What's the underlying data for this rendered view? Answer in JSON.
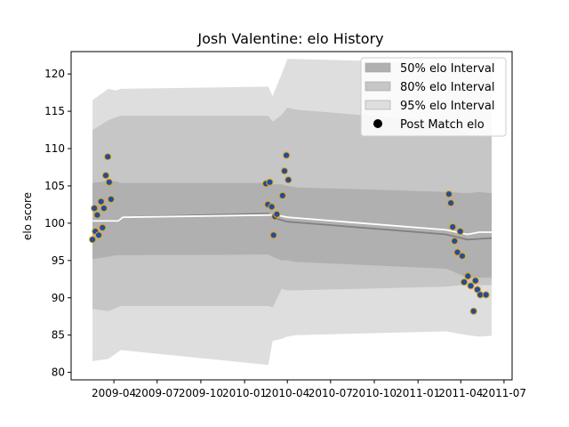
{
  "chart_data": {
    "type": "line",
    "title": "Josh Valentine: elo History",
    "xlabel": "",
    "ylabel": "elo score",
    "xlim": [
      "2009-01-01",
      "2011-07-18"
    ],
    "ylim": [
      79,
      123
    ],
    "x_ticks": [
      "2009-04",
      "2009-07",
      "2009-10",
      "2010-01",
      "2010-04",
      "2010-07",
      "2010-10",
      "2011-01",
      "2011-04",
      "2011-07"
    ],
    "y_ticks": [
      80,
      85,
      90,
      95,
      100,
      105,
      110,
      115,
      120
    ],
    "grid": false,
    "legend_position": "top-right",
    "legend": [
      {
        "label": "50% elo Interval",
        "kind": "band",
        "color": "#b0b0b0"
      },
      {
        "label": "80% elo Interval",
        "kind": "band",
        "color": "#c6c6c6"
      },
      {
        "label": "95% elo Interval",
        "kind": "band",
        "color": "#dedede"
      },
      {
        "label": "Post Match elo",
        "kind": "marker",
        "color": "#000000"
      }
    ],
    "colors": {
      "band_50": "#b0b0b0",
      "band_80": "#c6c6c6",
      "band_95": "#dedede",
      "mean_line": "#808080",
      "median_line": "#ffffff",
      "point_fill": "#1f4e9c",
      "point_edge": "#e8a317"
    },
    "bands": {
      "x": [
        "2009-02-15",
        "2009-03-20",
        "2009-04-05",
        "2009-04-15",
        "2010-02-20",
        "2010-03-01",
        "2010-03-20",
        "2010-04-01",
        "2010-04-20",
        "2011-03-01",
        "2011-04-15",
        "2011-05-10",
        "2011-06-05"
      ],
      "p95_low": [
        81.5,
        81.8,
        82.5,
        83.0,
        81.0,
        84.2,
        84.5,
        84.8,
        85.0,
        85.5,
        85.0,
        84.8,
        84.9
      ],
      "p95_high": [
        116.5,
        118.0,
        117.8,
        118.0,
        118.3,
        117.0,
        120.0,
        122.0,
        122.0,
        121.5,
        120.5,
        120.2,
        120.2
      ],
      "p80_low": [
        88.5,
        88.2,
        88.6,
        88.9,
        88.9,
        88.7,
        91.2,
        91.0,
        91.0,
        91.5,
        91.8,
        91.7,
        91.7
      ],
      "p80_high": [
        112.5,
        113.8,
        114.2,
        114.4,
        114.4,
        113.6,
        114.5,
        115.5,
        115.2,
        113.6,
        112.0,
        111.6,
        111.6
      ],
      "p50_low": [
        95.2,
        95.5,
        95.7,
        95.7,
        95.8,
        95.5,
        95.0,
        95.0,
        94.8,
        93.9,
        92.7,
        92.7,
        92.7
      ],
      "p50_high": [
        105.4,
        105.6,
        105.6,
        105.4,
        105.4,
        105.2,
        105.2,
        105.0,
        104.8,
        104.2,
        104.0,
        104.2,
        104.0
      ]
    },
    "series": [
      {
        "style": "mean",
        "x": [
          "2009-02-15",
          "2009-03-20",
          "2009-04-10",
          "2009-04-20",
          "2010-02-20",
          "2010-03-10",
          "2010-04-01",
          "2010-04-20",
          "2011-03-01",
          "2011-04-15",
          "2011-05-10",
          "2011-06-05"
        ],
        "values": [
          100.3,
          100.3,
          100.3,
          100.8,
          101.3,
          100.6,
          100.2,
          100.1,
          98.5,
          97.8,
          97.9,
          98.0
        ]
      },
      {
        "style": "median",
        "x": [
          "2009-02-15",
          "2009-03-20",
          "2009-04-10",
          "2009-04-20",
          "2010-02-20",
          "2010-03-10",
          "2010-04-01",
          "2010-04-20",
          "2011-03-01",
          "2011-04-15",
          "2011-05-10",
          "2011-06-05"
        ],
        "values": [
          100.3,
          100.3,
          100.3,
          100.8,
          101.1,
          101.1,
          100.8,
          100.7,
          99.1,
          98.5,
          98.8,
          98.8
        ]
      }
    ],
    "points": {
      "name": "Post Match elo",
      "x": [
        "2009-02-15",
        "2009-02-19",
        "2009-02-21",
        "2009-02-25",
        "2009-02-28",
        "2009-03-05",
        "2009-03-08",
        "2009-03-11",
        "2009-03-15",
        "2009-03-19",
        "2009-03-22",
        "2009-03-26",
        "2010-02-15",
        "2010-02-19",
        "2010-02-23",
        "2010-02-27",
        "2010-03-03",
        "2010-03-06",
        "2010-03-10",
        "2010-03-22",
        "2010-03-26",
        "2010-03-30",
        "2010-04-03",
        "2011-03-07",
        "2011-03-11",
        "2011-03-15",
        "2011-03-19",
        "2011-03-25",
        "2011-03-31",
        "2011-04-04",
        "2011-04-08",
        "2011-04-16",
        "2011-04-22",
        "2011-04-28",
        "2011-05-02",
        "2011-05-06",
        "2011-05-12",
        "2011-05-24"
      ],
      "values": [
        97.8,
        102.0,
        98.9,
        101.1,
        98.4,
        102.9,
        99.4,
        102.0,
        106.4,
        108.9,
        105.5,
        103.2,
        105.3,
        102.5,
        105.5,
        102.2,
        98.4,
        100.9,
        101.2,
        103.7,
        107.0,
        109.1,
        105.8,
        103.9,
        102.7,
        99.5,
        97.6,
        96.1,
        98.9,
        95.6,
        92.1,
        92.9,
        91.6,
        88.2,
        92.3,
        91.1,
        90.4,
        90.4
      ]
    }
  }
}
